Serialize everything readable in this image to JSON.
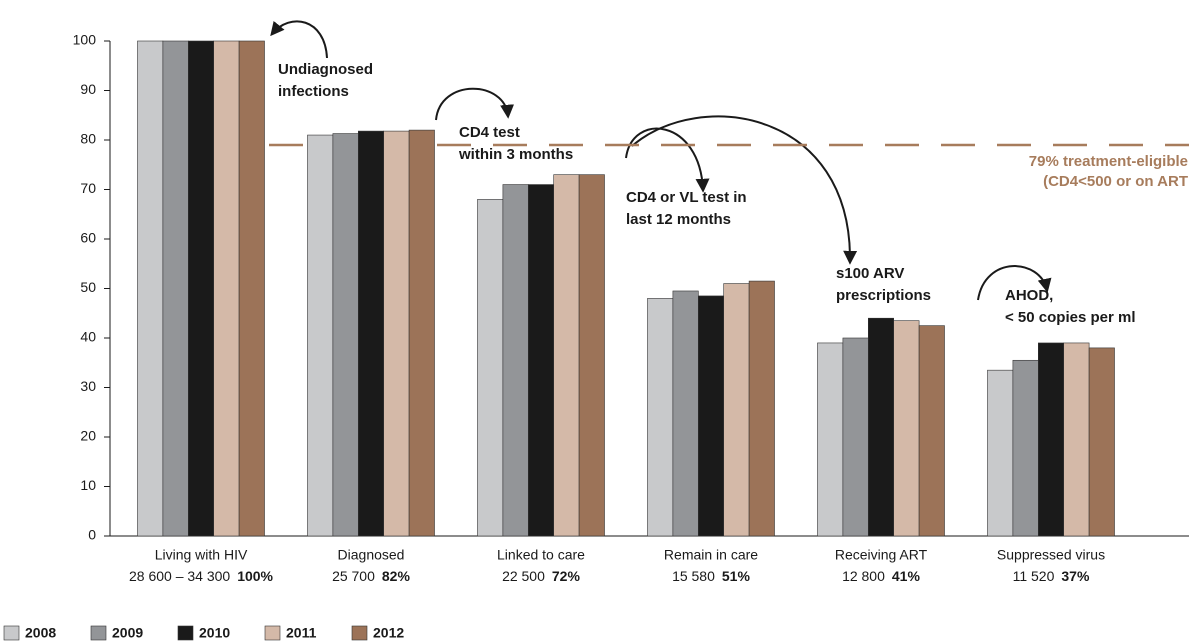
{
  "chart_data": {
    "type": "bar",
    "categories": [
      "Living with HIV",
      "Diagnosed",
      "Linked to care",
      "Remain in care",
      "Receiving ART",
      "Suppressed virus"
    ],
    "category_counts": [
      "28 600 – 34 300",
      "25 700",
      "22 500",
      "15 580",
      "12 800",
      "11 520"
    ],
    "category_percents": [
      "100%",
      "82%",
      "72%",
      "51%",
      "41%",
      "37%"
    ],
    "series": [
      {
        "name": "2008",
        "color": "#c8c9cb",
        "values": [
          100,
          81,
          68,
          48,
          39,
          33.5
        ]
      },
      {
        "name": "2009",
        "color": "#939598",
        "values": [
          100,
          81.3,
          71,
          49.5,
          40,
          35.5
        ]
      },
      {
        "name": "2010",
        "color": "#1a1a1a",
        "values": [
          100,
          81.8,
          71,
          48.5,
          44,
          39
        ]
      },
      {
        "name": "2011",
        "color": "#d4b9a8",
        "values": [
          100,
          81.8,
          73,
          51,
          43.5,
          39
        ]
      },
      {
        "name": "2012",
        "color": "#9c7358",
        "values": [
          100,
          82,
          73,
          51.5,
          42.5,
          38
        ]
      }
    ],
    "ylim": [
      0,
      100
    ],
    "yticks": [
      0,
      10,
      20,
      30,
      40,
      50,
      60,
      70,
      80,
      90,
      100
    ],
    "reference_line": {
      "value": 79,
      "color": "#a77c5c",
      "label": [
        "79% treatment-eligible",
        "(CD4<500 or on ART"
      ]
    },
    "annotations": [
      [
        "Undiagnosed",
        "infections"
      ],
      [
        "CD4 test",
        "within  3 months"
      ],
      [
        "CD4 or VL test in",
        "last 12 months"
      ],
      [
        "s100 ARV",
        "prescriptions"
      ],
      [
        "AHOD,",
        "< 50 copies per ml"
      ]
    ],
    "legend": "bottom-left"
  }
}
